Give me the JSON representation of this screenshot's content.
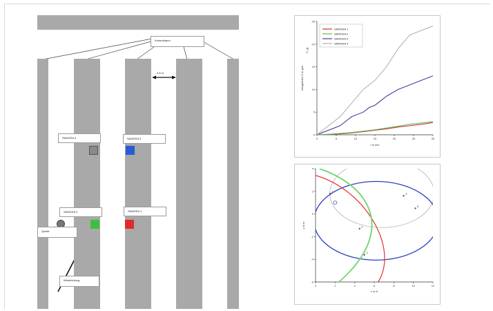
{
  "floorplan": {
    "top_label": "Kontrollraum",
    "distance_label": "2,5 m",
    "sensors": [
      {
        "name": "SAMOSA 4",
        "color": "#8a8a8a"
      },
      {
        "name": "SAMOSA 3",
        "color": "#2a5bd7"
      },
      {
        "name": "SAMOSA 2",
        "color": "#3fbf3f"
      },
      {
        "name": "SAMOSA 1",
        "color": "#e02b2b"
      }
    ],
    "source_label": "Quelle",
    "wind_label": "Windrichtung"
  },
  "chart_data": [
    {
      "type": "line",
      "xlabel": "t in min",
      "ylabel": "Integriertes C in g/m",
      "y_symbol": "C_ig",
      "xlim": [
        0,
        30
      ],
      "ylim": [
        0,
        25
      ],
      "x_ticks": [
        "0",
        "5",
        "10",
        "15",
        "20",
        "25",
        "30"
      ],
      "y_ticks": [
        "0",
        "5",
        "10",
        "15",
        "20",
        "25"
      ],
      "legend_position": "top-left",
      "series": [
        {
          "name": "SAMOSA 1",
          "color": "#d23030",
          "x": [
            0,
            3,
            6,
            9,
            12,
            15,
            18,
            21,
            24,
            27,
            30
          ],
          "values": [
            0,
            0.1,
            0.2,
            0.4,
            0.7,
            1.0,
            1.3,
            1.7,
            2.0,
            2.3,
            2.7
          ]
        },
        {
          "name": "SAMOSA 2",
          "color": "#5fb85f",
          "x": [
            0,
            3,
            6,
            9,
            12,
            15,
            18,
            21,
            24,
            27,
            30
          ],
          "values": [
            0,
            0.1,
            0.3,
            0.5,
            0.8,
            1.1,
            1.5,
            1.9,
            2.3,
            2.6,
            2.9
          ]
        },
        {
          "name": "SAMOSA 3",
          "color": "#4a3aa0",
          "x": [
            0,
            3,
            6,
            9,
            12,
            13.5,
            15,
            18,
            21,
            24,
            27,
            30
          ],
          "values": [
            0,
            1,
            2,
            4,
            5,
            6,
            6.5,
            8.5,
            10,
            11,
            12,
            13
          ]
        },
        {
          "name": "SAMOSA 4",
          "color": "#b8b0b0",
          "x": [
            0,
            3,
            6,
            9,
            12,
            15,
            18,
            21,
            24,
            27,
            30
          ],
          "values": [
            0,
            2,
            4,
            7,
            10,
            12,
            15,
            19,
            22,
            23,
            24
          ]
        }
      ]
    },
    {
      "type": "scatter",
      "xlabel": "x in m",
      "ylabel": "y in m",
      "xlim": [
        0,
        12
      ],
      "ylim": [
        -6,
        4
      ],
      "x_ticks": [
        "0",
        "2",
        "4",
        "6",
        "8",
        "10",
        "12"
      ],
      "y_ticks": [
        "-6",
        "-4",
        "-2",
        "0",
        "2",
        "4"
      ],
      "points": [
        {
          "x": 1.5,
          "y": 1.8,
          "label": "1"
        },
        {
          "x": 4.5,
          "y": -1.3,
          "label": "2"
        },
        {
          "x": 5.0,
          "y": -3.6,
          "label": "3"
        },
        {
          "x": 9.0,
          "y": 1.6,
          "label": "4"
        },
        {
          "x": 10.2,
          "y": 0.5,
          "label": "5"
        }
      ]
    }
  ]
}
